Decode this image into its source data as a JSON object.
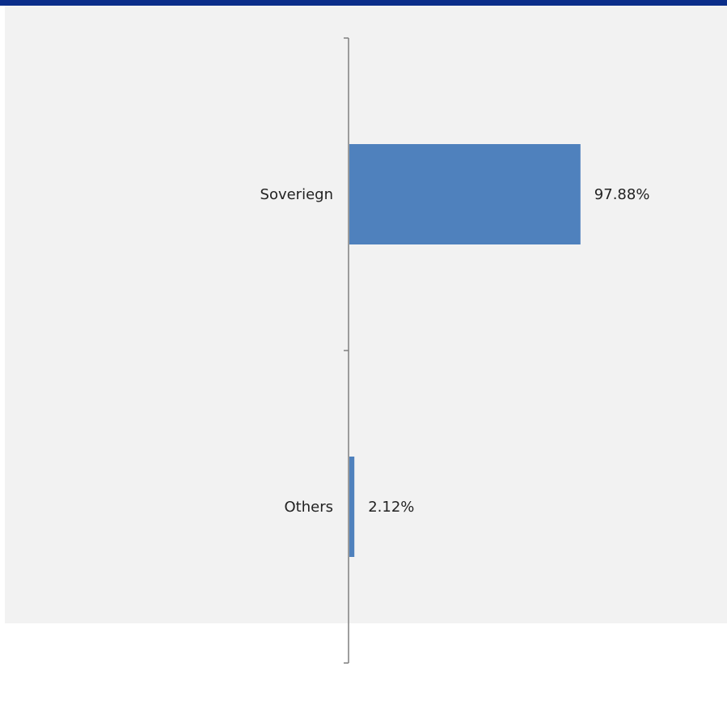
{
  "colors": {
    "header_band": "#0b2e8a",
    "panel_background": "#f2f2f2",
    "bar": "#4f81bd",
    "axis": "#7f7f7f"
  },
  "chart_data": {
    "type": "bar",
    "orientation": "horizontal",
    "categories": [
      "Soveriegn",
      "Others"
    ],
    "values": [
      97.88,
      2.12
    ],
    "value_labels": [
      "97.88%",
      "2.12%"
    ],
    "value_unit": "%",
    "xlim": [
      0,
      100
    ],
    "grid": false,
    "legend": "none"
  }
}
